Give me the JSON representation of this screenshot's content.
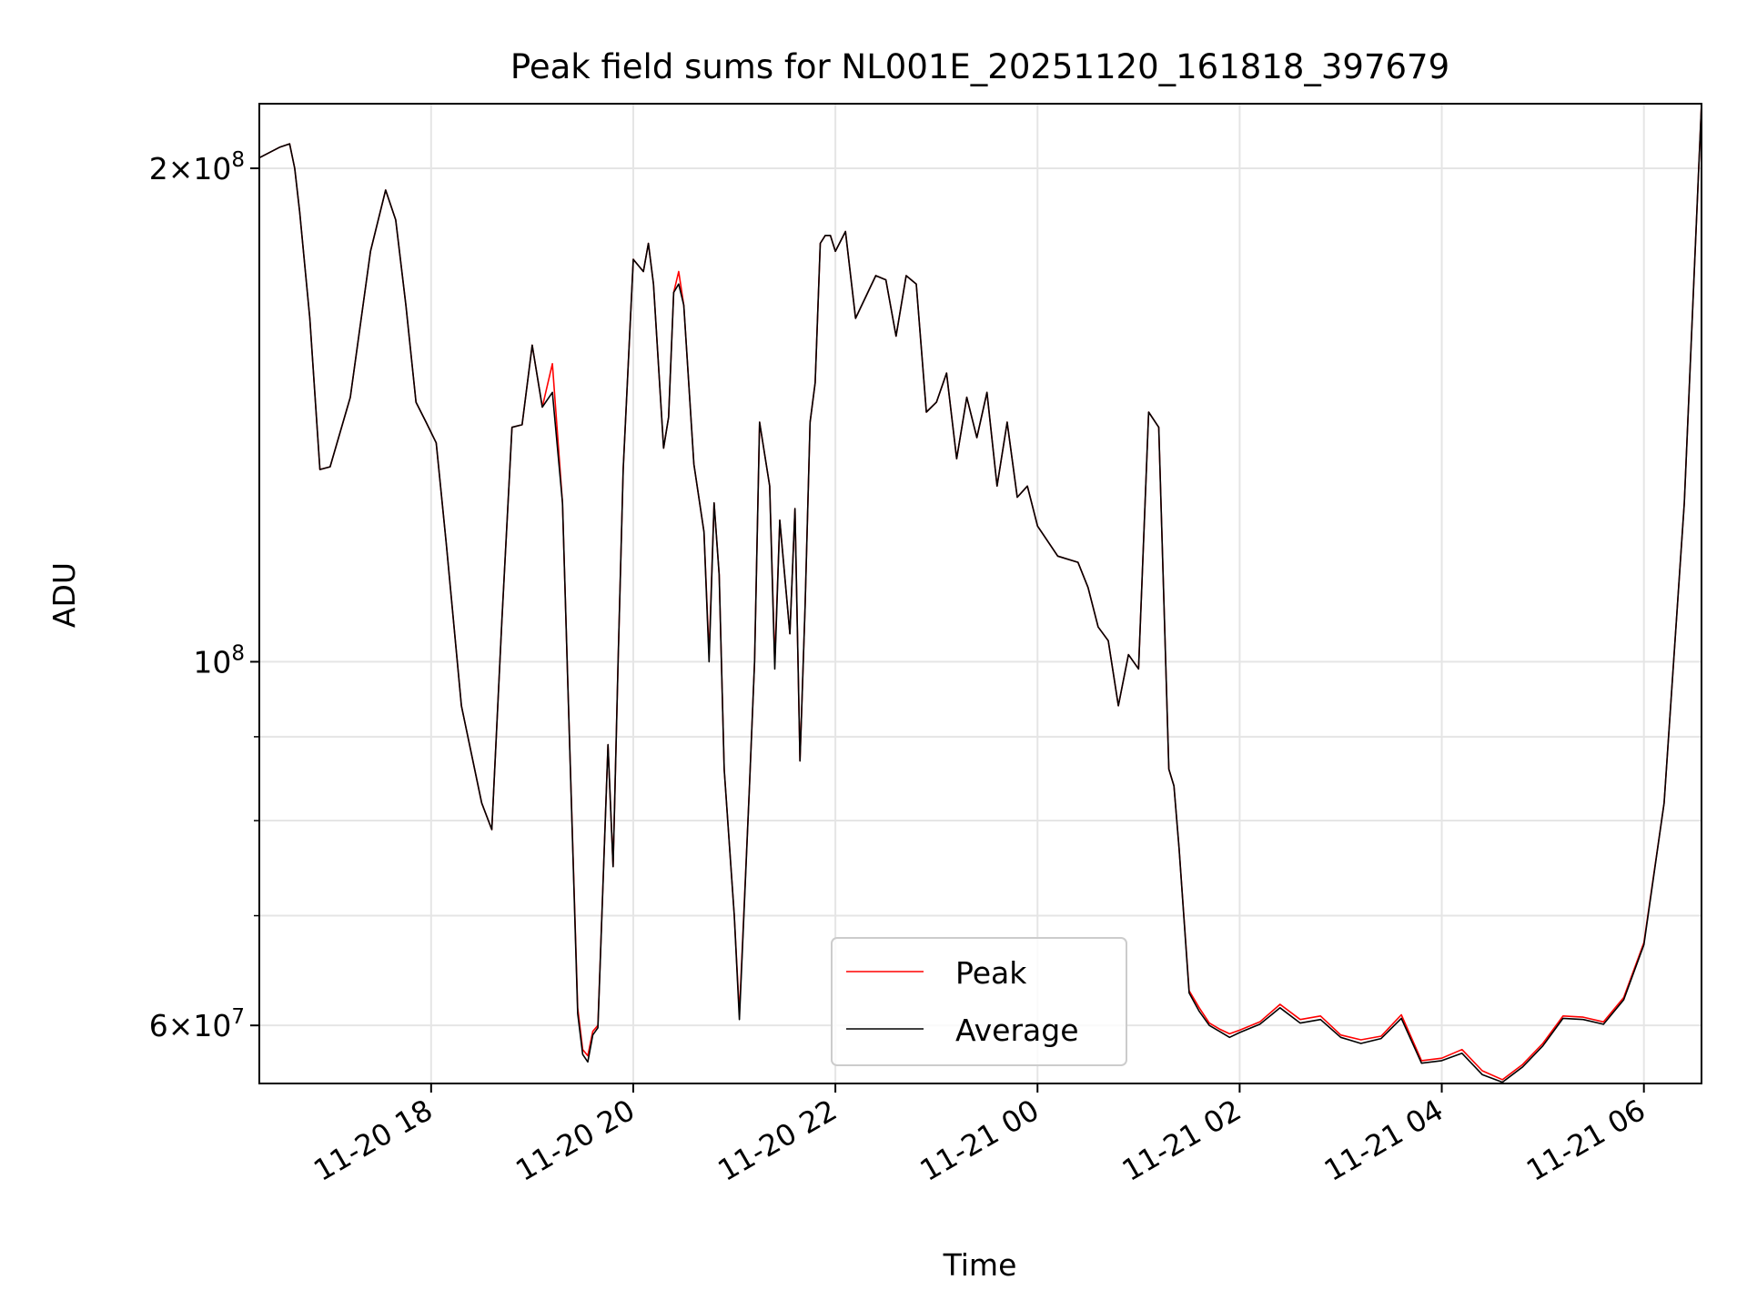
{
  "chart_data": {
    "type": "line",
    "title": "Peak field sums for NL001E_20251120_161818_397679",
    "xlabel": "Time",
    "ylabel": "ADU",
    "yscale": "log",
    "ylim": [
      55300000,
      219000000
    ],
    "xlim_hours": [
      16.3,
      30.57
    ],
    "grid": true,
    "legend_position": "lower center",
    "x_ticks": [
      {
        "hour": 18,
        "label": "11-20 18"
      },
      {
        "hour": 20,
        "label": "11-20 20"
      },
      {
        "hour": 22,
        "label": "11-20 22"
      },
      {
        "hour": 24,
        "label": "11-21 00"
      },
      {
        "hour": 26,
        "label": "11-21 02"
      },
      {
        "hour": 28,
        "label": "11-21 04"
      },
      {
        "hour": 30,
        "label": "11-21 06"
      }
    ],
    "y_ticks": [
      {
        "value": 60000000,
        "base": "6×10",
        "exp": "7"
      },
      {
        "value": 100000000,
        "base": "10",
        "exp": "8"
      },
      {
        "value": 200000000,
        "base": "2×10",
        "exp": "8"
      }
    ],
    "y_minor_ticks": [
      70000000,
      80000000,
      90000000
    ],
    "x_hours": [
      16.3,
      16.5,
      16.6,
      16.65,
      16.7,
      16.8,
      16.9,
      17.0,
      17.2,
      17.4,
      17.55,
      17.65,
      17.75,
      17.85,
      17.95,
      18.05,
      18.15,
      18.3,
      18.5,
      18.6,
      18.7,
      18.8,
      18.9,
      19.0,
      19.1,
      19.2,
      19.3,
      19.35,
      19.45,
      19.5,
      19.55,
      19.6,
      19.65,
      19.75,
      19.8,
      19.85,
      19.9,
      20.0,
      20.1,
      20.15,
      20.2,
      20.3,
      20.35,
      20.4,
      20.45,
      20.5,
      20.6,
      20.7,
      20.75,
      20.8,
      20.85,
      20.9,
      21.0,
      21.05,
      21.15,
      21.2,
      21.25,
      21.35,
      21.4,
      21.45,
      21.55,
      21.6,
      21.65,
      21.7,
      21.75,
      21.8,
      21.85,
      21.9,
      21.95,
      22.0,
      22.1,
      22.2,
      22.4,
      22.5,
      22.6,
      22.7,
      22.8,
      22.9,
      23.0,
      23.1,
      23.2,
      23.3,
      23.4,
      23.5,
      23.6,
      23.7,
      23.8,
      23.9,
      24.0,
      24.2,
      24.4,
      24.5,
      24.6,
      24.7,
      24.8,
      24.9,
      25.0,
      25.1,
      25.2,
      25.3,
      25.35,
      25.4,
      25.5,
      25.6,
      25.7,
      25.8,
      25.9,
      26.0,
      26.2,
      26.4,
      26.6,
      26.8,
      27.0,
      27.2,
      27.4,
      27.6,
      27.8,
      28.0,
      28.2,
      28.4,
      28.6,
      28.8,
      29.0,
      29.2,
      29.4,
      29.6,
      29.8,
      30.0,
      30.2,
      30.4,
      30.57
    ],
    "series": [
      {
        "name": "Peak",
        "color": "#ff0000",
        "values": [
          203000000,
          206000000,
          207000000,
          200000000,
          188000000,
          162000000,
          131000000,
          131500000,
          145000000,
          178000000,
          194000000,
          186000000,
          165000000,
          144000000,
          140000000,
          136000000,
          118000000,
          94000000,
          82000000,
          79000000,
          106000000,
          139000000,
          139500000,
          156000000,
          143000000,
          152000000,
          125000000,
          98000000,
          61500000,
          58000000,
          57500000,
          59500000,
          60000000,
          89000000,
          75000000,
          100000000,
          131000000,
          176000000,
          173000000,
          180000000,
          170000000,
          135000000,
          141000000,
          168000000,
          173000000,
          165000000,
          132000000,
          120000000,
          101000000,
          125000000,
          113000000,
          86000000,
          70000000,
          61000000,
          84000000,
          100000000,
          140000000,
          128000000,
          100000000,
          122000000,
          104000000,
          124000000,
          87000000,
          108000000,
          140000000,
          148000000,
          180000000,
          182000000,
          182000000,
          178000000,
          183000000,
          162000000,
          172000000,
          171000000,
          158000000,
          172000000,
          170000000,
          142000000,
          144000000,
          150000000,
          133000000,
          145000000,
          137000000,
          146000000,
          128000000,
          140000000,
          126000000,
          128000000,
          121000000,
          116000000,
          115000000,
          111000000,
          105000000,
          103000000,
          94000000,
          101000000,
          99000000,
          142000000,
          139000000,
          86000000,
          84000000,
          77000000,
          63000000,
          61500000,
          60200000,
          59700000,
          59300000,
          59600000,
          60300000,
          61800000,
          60500000,
          60800000,
          59200000,
          58800000,
          59100000,
          60900000,
          57100000,
          57300000,
          58000000,
          56300000,
          55600000,
          56800000,
          58500000,
          60800000,
          60700000,
          60300000,
          62400000,
          67400000,
          82000000,
          125000000,
          219000000
        ]
      },
      {
        "name": "Average",
        "color": "#000000",
        "values": [
          203000000,
          206000000,
          207000000,
          200000000,
          188000000,
          162000000,
          131000000,
          131500000,
          145000000,
          178000000,
          194000000,
          186000000,
          165000000,
          144000000,
          140000000,
          136000000,
          118000000,
          94000000,
          82000000,
          79000000,
          106000000,
          139000000,
          139500000,
          156000000,
          143000000,
          146000000,
          125000000,
          98000000,
          61000000,
          57600000,
          57000000,
          59200000,
          59800000,
          89000000,
          75000000,
          100000000,
          131000000,
          176000000,
          173000000,
          180000000,
          170000000,
          135000000,
          141000000,
          168000000,
          170000000,
          165000000,
          132000000,
          120000000,
          100000000,
          125000000,
          113000000,
          86000000,
          70000000,
          60500000,
          84000000,
          100000000,
          140000000,
          128000000,
          99000000,
          122000000,
          104000000,
          124000000,
          87000000,
          108000000,
          140000000,
          148000000,
          180000000,
          182000000,
          182000000,
          178000000,
          183000000,
          162000000,
          172000000,
          171000000,
          158000000,
          172000000,
          170000000,
          142000000,
          144000000,
          150000000,
          133000000,
          145000000,
          137000000,
          146000000,
          128000000,
          140000000,
          126000000,
          128000000,
          121000000,
          116000000,
          115000000,
          111000000,
          105000000,
          103000000,
          94000000,
          101000000,
          99000000,
          142000000,
          139000000,
          86000000,
          84000000,
          77000000,
          62800000,
          61200000,
          60000000,
          59500000,
          59000000,
          59400000,
          60100000,
          61500000,
          60200000,
          60500000,
          59000000,
          58500000,
          58900000,
          60600000,
          56900000,
          57100000,
          57700000,
          56000000,
          55400000,
          56600000,
          58300000,
          60600000,
          60500000,
          60100000,
          62200000,
          67200000,
          82000000,
          125000000,
          219000000
        ]
      }
    ]
  }
}
